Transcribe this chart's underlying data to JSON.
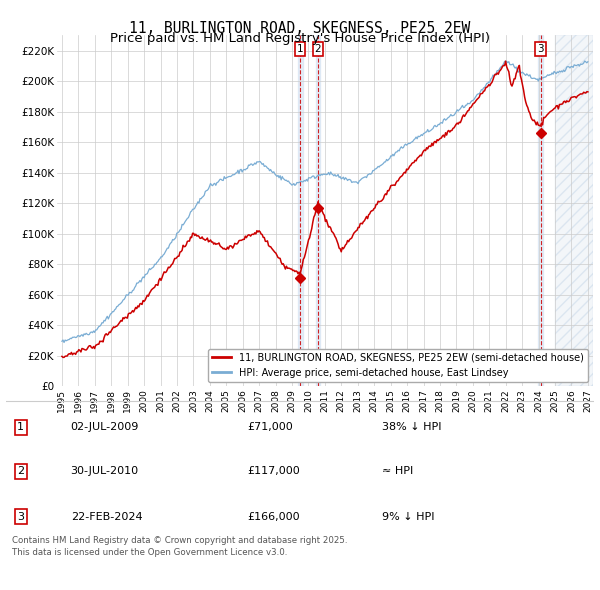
{
  "title": "11, BURLINGTON ROAD, SKEGNESS, PE25 2EW",
  "subtitle": "Price paid vs. HM Land Registry's House Price Index (HPI)",
  "title_fontsize": 10.5,
  "ylim": [
    0,
    230000
  ],
  "yticks": [
    0,
    20000,
    40000,
    60000,
    80000,
    100000,
    120000,
    140000,
    160000,
    180000,
    200000,
    220000
  ],
  "ytick_labels": [
    "£0",
    "£20K",
    "£40K",
    "£60K",
    "£80K",
    "£100K",
    "£120K",
    "£140K",
    "£160K",
    "£180K",
    "£200K",
    "£220K"
  ],
  "xlim_start": 1994.7,
  "xlim_end": 2027.3,
  "xtick_years": [
    1995,
    1996,
    1997,
    1998,
    1999,
    2000,
    2001,
    2002,
    2003,
    2004,
    2005,
    2006,
    2007,
    2008,
    2009,
    2010,
    2011,
    2012,
    2013,
    2014,
    2015,
    2016,
    2017,
    2018,
    2019,
    2020,
    2021,
    2022,
    2023,
    2024,
    2025,
    2026,
    2027
  ],
  "line_color_red": "#cc0000",
  "line_color_blue": "#7aadd4",
  "vline_color": "#cc0000",
  "vline_band_color": "#ccddf0",
  "sales": [
    {
      "id": 1,
      "date": "02-JUL-2009",
      "year": 2009.5,
      "price": 71000,
      "note": "38% ↓ HPI"
    },
    {
      "id": 2,
      "date": "30-JUL-2010",
      "year": 2010.58,
      "price": 117000,
      "note": "≈ HPI"
    },
    {
      "id": 3,
      "date": "22-FEB-2024",
      "year": 2024.12,
      "price": 166000,
      "note": "9% ↓ HPI"
    }
  ],
  "legend_entries": [
    "11, BURLINGTON ROAD, SKEGNESS, PE25 2EW (semi-detached house)",
    "HPI: Average price, semi-detached house, East Lindsey"
  ],
  "footer_text": "Contains HM Land Registry data © Crown copyright and database right 2025.\nThis data is licensed under the Open Government Licence v3.0.",
  "background_color": "#ffffff",
  "grid_color": "#cccccc",
  "future_start": 2025.0,
  "hatch_color": "#c8d8e8"
}
